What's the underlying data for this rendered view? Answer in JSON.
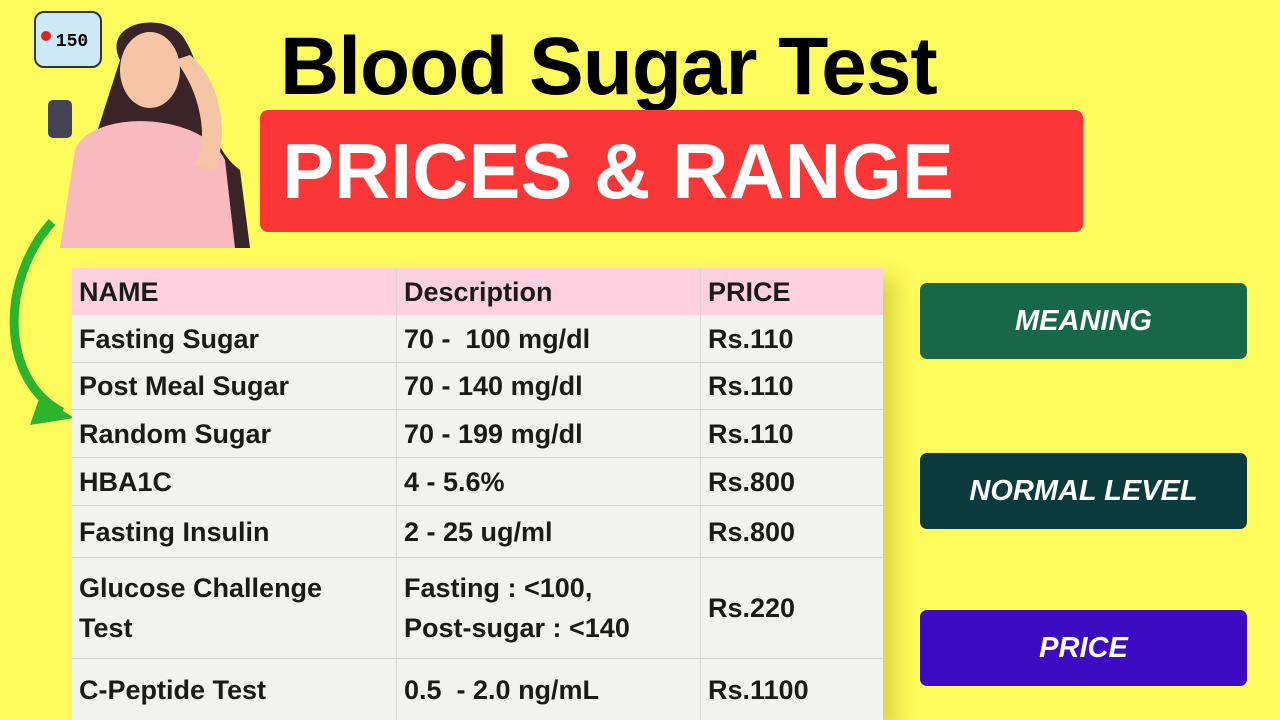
{
  "header": {
    "title": "Blood Sugar Test",
    "banner": "PRICES & RANGE",
    "meter_reading": "150"
  },
  "table": {
    "columns": [
      "NAME",
      "Description",
      "PRICE"
    ],
    "rows": [
      [
        "Fasting Sugar",
        "70 -  100 mg/dl",
        "Rs.110"
      ],
      [
        "Post Meal Sugar",
        "70 - 140 mg/dl",
        "Rs.110"
      ],
      [
        "Random Sugar",
        "70 - 199 mg/dl",
        "Rs.110"
      ],
      [
        "HBA1C",
        "4 - 5.6%",
        "Rs.800"
      ],
      [
        "Fasting Insulin",
        "2 - 25 ug/ml",
        "Rs.800"
      ],
      [
        [
          "Glucose Challenge",
          "Test"
        ],
        [
          "Fasting : <100,",
          "Post-sugar : <140"
        ],
        "Rs.220"
      ],
      [
        "C-Peptide Test",
        "0.5  - 2.0 ng/mL",
        "Rs.1100"
      ]
    ]
  },
  "buttons": [
    "MEANING",
    "NORMAL LEVEL",
    "PRICE"
  ]
}
